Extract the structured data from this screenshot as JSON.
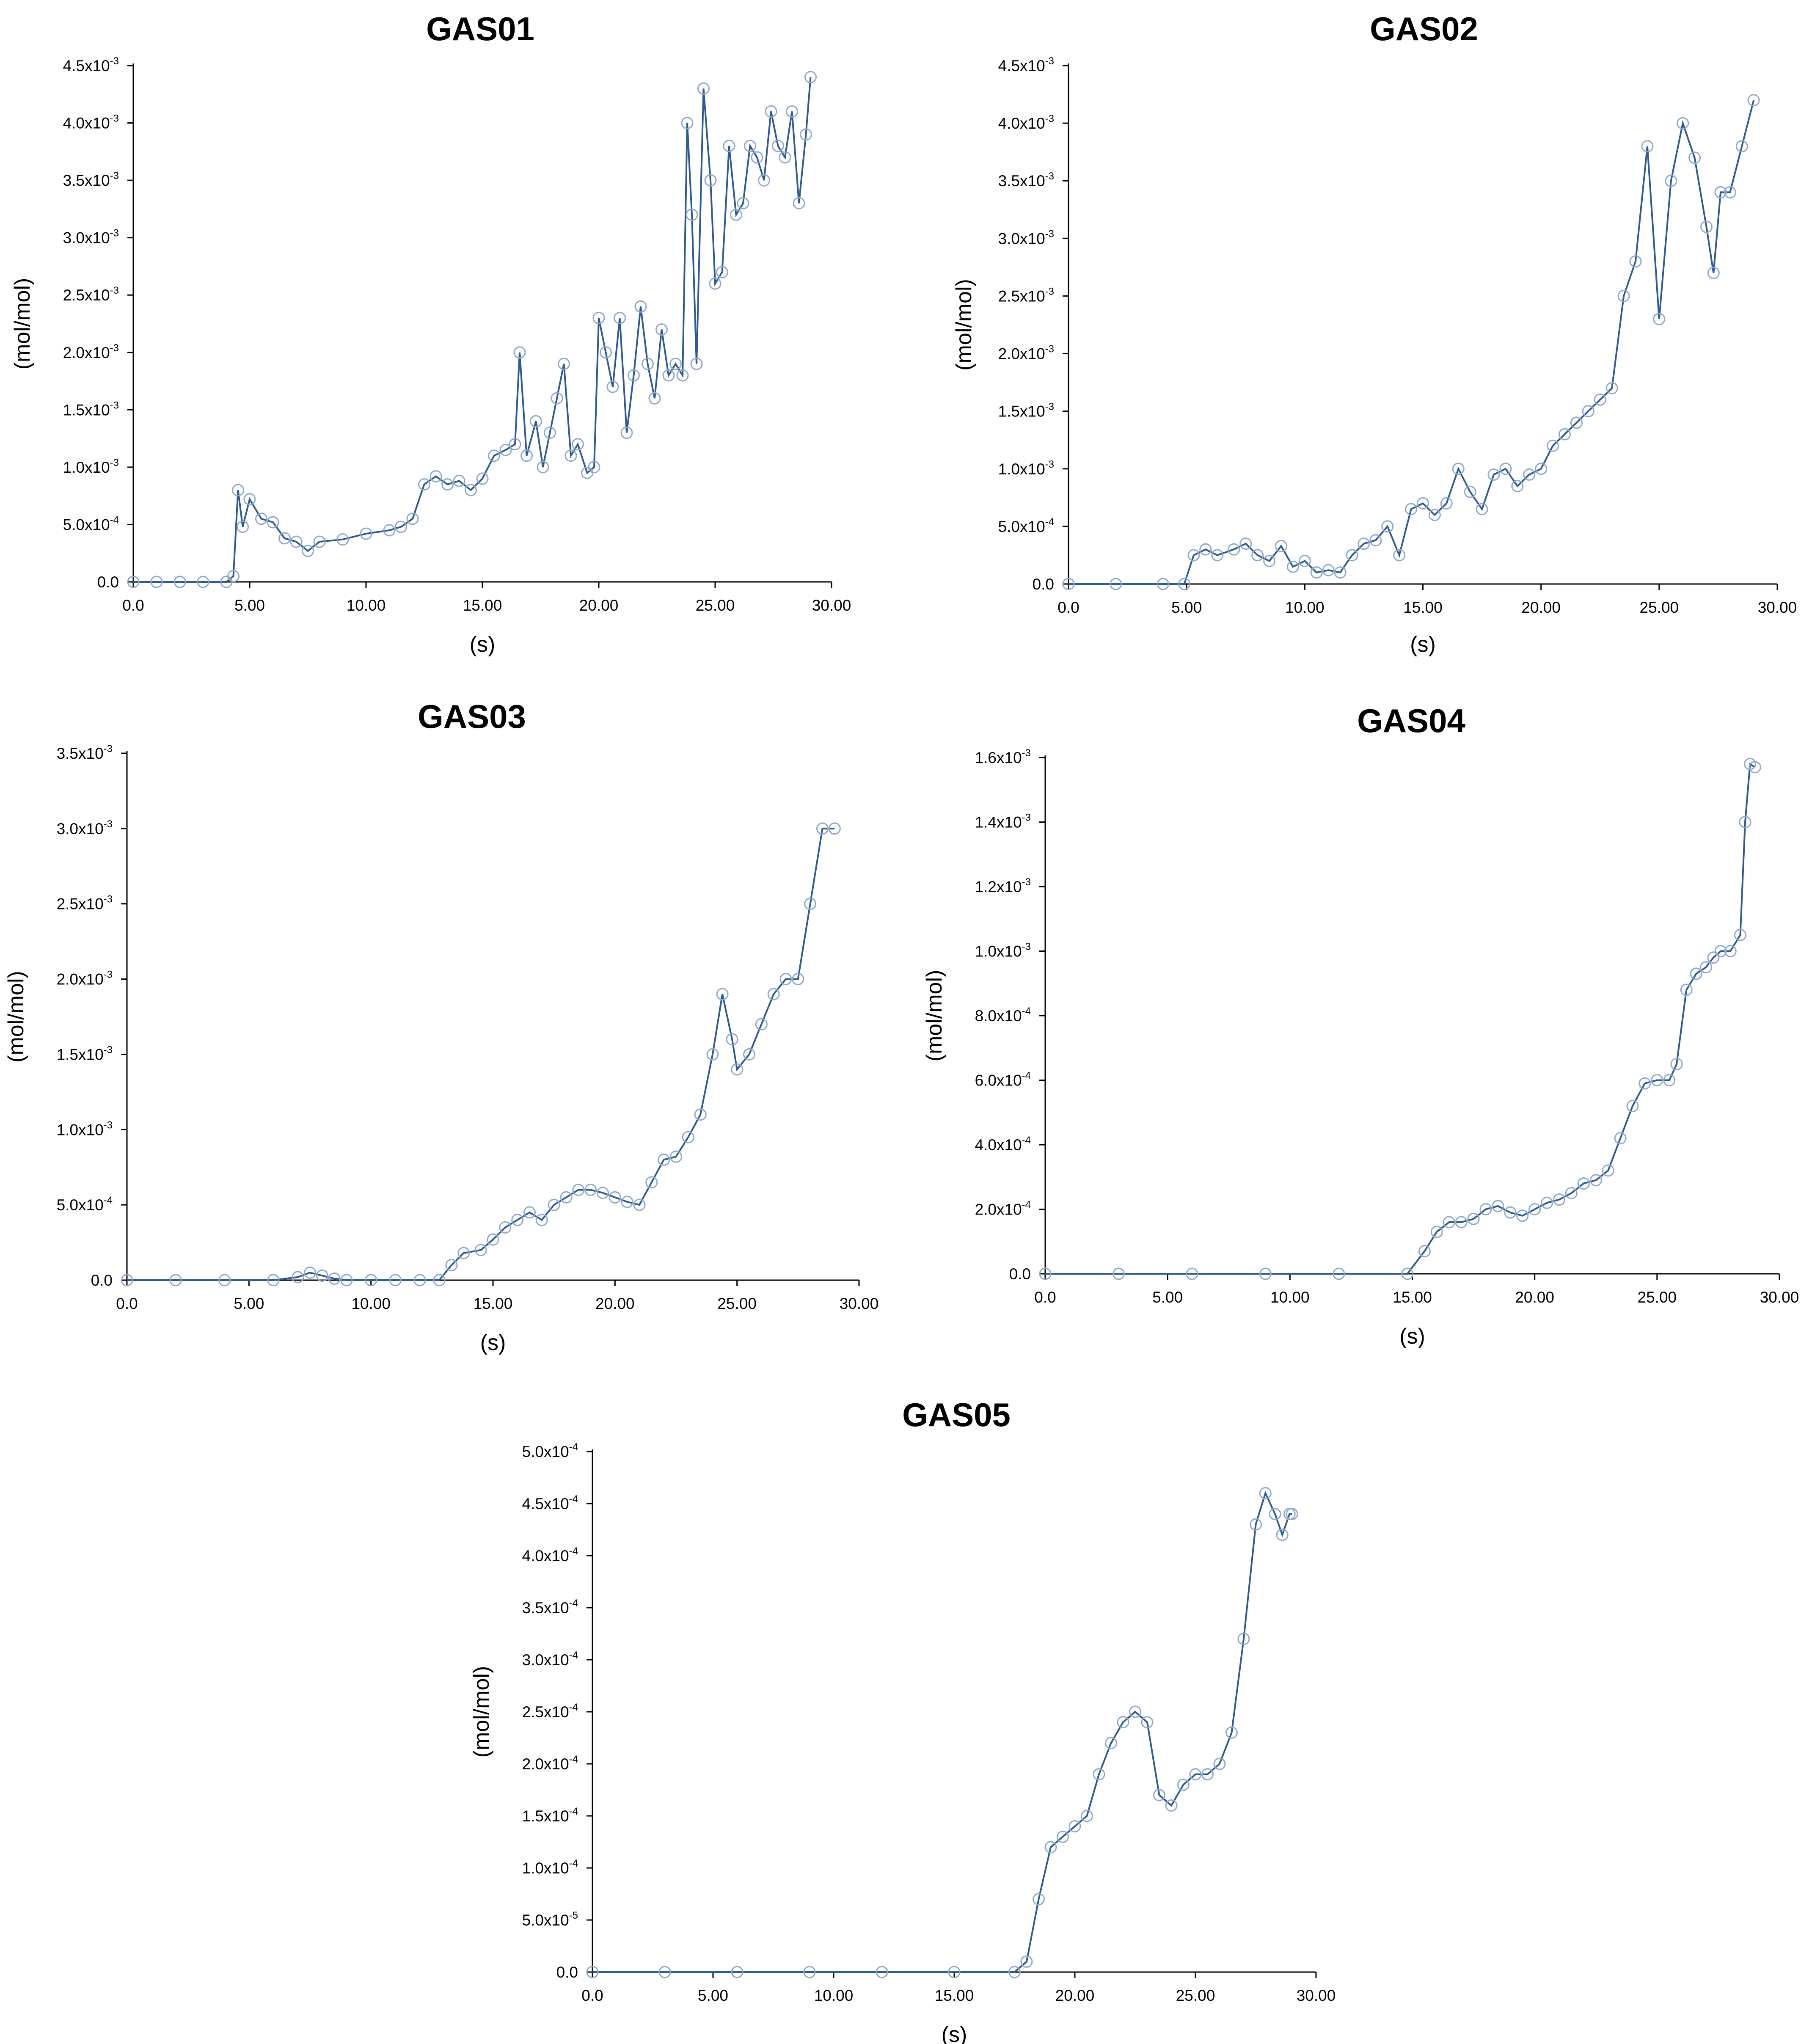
{
  "colors": {
    "line": "#2E5A8F",
    "marker": "#8FA8CC",
    "axis": "#000000"
  },
  "chart_data": [
    {
      "type": "line",
      "title": "GAS01",
      "xlabel": "(s)",
      "ylabel": "(mol/mol)",
      "xlim": [
        0,
        30
      ],
      "ylim": [
        0,
        0.0045
      ],
      "xticks": [
        {
          "v": 0,
          "label": "0.0"
        },
        {
          "v": 5,
          "label": "5.00"
        },
        {
          "v": 10,
          "label": "10.00"
        },
        {
          "v": 15,
          "label": "15.00"
        },
        {
          "v": 20,
          "label": "20.00"
        },
        {
          "v": 25,
          "label": "25.00"
        },
        {
          "v": 30,
          "label": "30.00"
        }
      ],
      "yticks": [
        {
          "v": 0,
          "m": "0.0",
          "e": ""
        },
        {
          "v": 0.0005,
          "m": "5.0x10",
          "e": "-4"
        },
        {
          "v": 0.001,
          "m": "1.0x10",
          "e": "-3"
        },
        {
          "v": 0.0015,
          "m": "1.5x10",
          "e": "-3"
        },
        {
          "v": 0.002,
          "m": "2.0x10",
          "e": "-3"
        },
        {
          "v": 0.0025,
          "m": "2.5x10",
          "e": "-3"
        },
        {
          "v": 0.003,
          "m": "3.0x10",
          "e": "-3"
        },
        {
          "v": 0.0035,
          "m": "3.5x10",
          "e": "-3"
        },
        {
          "v": 0.004,
          "m": "4.0x10",
          "e": "-3"
        },
        {
          "v": 0.0045,
          "m": "4.5x10",
          "e": "-3"
        }
      ],
      "x": [
        0,
        1,
        2,
        3,
        4,
        4.3,
        4.5,
        4.7,
        5.0,
        5.5,
        6.0,
        6.5,
        7.0,
        7.5,
        8.0,
        9.0,
        10.0,
        11.0,
        11.5,
        12.0,
        12.5,
        13.0,
        13.5,
        14.0,
        14.5,
        15.0,
        15.5,
        16.0,
        16.4,
        16.6,
        16.9,
        17.3,
        17.6,
        17.9,
        18.2,
        18.5,
        18.8,
        19.1,
        19.5,
        19.8,
        20.0,
        20.3,
        20.6,
        20.9,
        21.2,
        21.5,
        21.8,
        22.1,
        22.4,
        22.7,
        23.0,
        23.3,
        23.6,
        23.8,
        24.0,
        24.2,
        24.5,
        24.8,
        25.0,
        25.3,
        25.6,
        25.9,
        26.2,
        26.5,
        26.8,
        27.1,
        27.4,
        27.7,
        28.0,
        28.3,
        28.6,
        28.9,
        29.1
      ],
      "y": [
        0,
        0,
        0,
        0,
        0,
        5e-05,
        0.0008,
        0.00048,
        0.00072,
        0.00055,
        0.00052,
        0.00038,
        0.00035,
        0.00027,
        0.00035,
        0.00037,
        0.00042,
        0.00045,
        0.00048,
        0.00055,
        0.00085,
        0.00092,
        0.00085,
        0.00088,
        0.0008,
        0.0009,
        0.0011,
        0.00115,
        0.0012,
        0.002,
        0.0011,
        0.0014,
        0.001,
        0.0013,
        0.0016,
        0.0019,
        0.0011,
        0.0012,
        0.00095,
        0.001,
        0.0023,
        0.002,
        0.0017,
        0.0023,
        0.0013,
        0.0018,
        0.0024,
        0.0019,
        0.0016,
        0.0022,
        0.0018,
        0.0019,
        0.0018,
        0.004,
        0.0032,
        0.0019,
        0.0043,
        0.0035,
        0.0026,
        0.0027,
        0.0038,
        0.0032,
        0.0033,
        0.0038,
        0.0037,
        0.0035,
        0.0041,
        0.0038,
        0.0037,
        0.0041,
        0.0033,
        0.0039,
        0.0044
      ]
    },
    {
      "type": "line",
      "title": "GAS02",
      "xlabel": "(s)",
      "ylabel": "(mol/mol)",
      "xlim": [
        0,
        30
      ],
      "ylim": [
        0,
        0.0045
      ],
      "xticks": [
        {
          "v": 0,
          "label": "0.0"
        },
        {
          "v": 5,
          "label": "5.00"
        },
        {
          "v": 10,
          "label": "10.00"
        },
        {
          "v": 15,
          "label": "15.00"
        },
        {
          "v": 20,
          "label": "20.00"
        },
        {
          "v": 25,
          "label": "25.00"
        },
        {
          "v": 30,
          "label": "30.00"
        }
      ],
      "yticks": [
        {
          "v": 0,
          "m": "0.0",
          "e": ""
        },
        {
          "v": 0.0005,
          "m": "5.0x10",
          "e": "-4"
        },
        {
          "v": 0.001,
          "m": "1.0x10",
          "e": "-3"
        },
        {
          "v": 0.0015,
          "m": "1.5x10",
          "e": "-3"
        },
        {
          "v": 0.002,
          "m": "2.0x10",
          "e": "-3"
        },
        {
          "v": 0.0025,
          "m": "2.5x10",
          "e": "-3"
        },
        {
          "v": 0.003,
          "m": "3.0x10",
          "e": "-3"
        },
        {
          "v": 0.0035,
          "m": "3.5x10",
          "e": "-3"
        },
        {
          "v": 0.004,
          "m": "4.0x10",
          "e": "-3"
        },
        {
          "v": 0.0045,
          "m": "4.5x10",
          "e": "-3"
        }
      ],
      "x": [
        0,
        2,
        4,
        4.9,
        5.3,
        5.8,
        6.3,
        7.0,
        7.5,
        8.0,
        8.5,
        9.0,
        9.5,
        10.0,
        10.5,
        11.0,
        11.5,
        12.0,
        12.5,
        13.0,
        13.5,
        14.0,
        14.5,
        15.0,
        15.5,
        16.0,
        16.5,
        17.0,
        17.5,
        18.0,
        18.5,
        19.0,
        19.5,
        20.0,
        20.5,
        21.0,
        21.5,
        22.0,
        22.5,
        23.0,
        23.5,
        24.0,
        24.5,
        25.0,
        25.5,
        26.0,
        26.5,
        27.0,
        27.3,
        27.6,
        28.0,
        28.5,
        29.0
      ],
      "y": [
        0,
        0,
        0,
        0,
        0.00025,
        0.0003,
        0.00025,
        0.0003,
        0.00035,
        0.00025,
        0.0002,
        0.00033,
        0.00015,
        0.0002,
        0.0001,
        0.00012,
        0.0001,
        0.00025,
        0.00035,
        0.00038,
        0.0005,
        0.00025,
        0.00065,
        0.0007,
        0.0006,
        0.0007,
        0.001,
        0.0008,
        0.00065,
        0.00095,
        0.001,
        0.00085,
        0.00095,
        0.001,
        0.0012,
        0.0013,
        0.0014,
        0.0015,
        0.0016,
        0.0017,
        0.0025,
        0.0028,
        0.0038,
        0.0023,
        0.0035,
        0.004,
        0.0037,
        0.0031,
        0.0027,
        0.0034,
        0.0034,
        0.0038,
        0.0042
      ]
    },
    {
      "type": "line",
      "title": "GAS03",
      "xlabel": "(s)",
      "ylabel": "(mol/mol)",
      "xlim": [
        0,
        30
      ],
      "ylim": [
        0,
        0.0035
      ],
      "xticks": [
        {
          "v": 0,
          "label": "0.0"
        },
        {
          "v": 5,
          "label": "5.00"
        },
        {
          "v": 10,
          "label": "10.00"
        },
        {
          "v": 15,
          "label": "15.00"
        },
        {
          "v": 20,
          "label": "20.00"
        },
        {
          "v": 25,
          "label": "25.00"
        },
        {
          "v": 30,
          "label": "30.00"
        }
      ],
      "yticks": [
        {
          "v": 0,
          "m": "0.0",
          "e": ""
        },
        {
          "v": 0.0005,
          "m": "5.0x10",
          "e": "-4"
        },
        {
          "v": 0.001,
          "m": "1.0x10",
          "e": "-3"
        },
        {
          "v": 0.0015,
          "m": "1.5x10",
          "e": "-3"
        },
        {
          "v": 0.002,
          "m": "2.0x10",
          "e": "-3"
        },
        {
          "v": 0.0025,
          "m": "2.5x10",
          "e": "-3"
        },
        {
          "v": 0.003,
          "m": "3.0x10",
          "e": "-3"
        },
        {
          "v": 0.0035,
          "m": "3.5x10",
          "e": "-3"
        }
      ],
      "x": [
        0,
        2,
        4,
        6,
        7.0,
        7.5,
        8.0,
        8.5,
        9,
        10,
        11,
        12,
        12.8,
        13.3,
        13.8,
        14.5,
        15.0,
        15.5,
        16.0,
        16.5,
        17.0,
        17.5,
        18.0,
        18.5,
        19.0,
        19.5,
        20.0,
        20.5,
        21.0,
        21.5,
        22.0,
        22.5,
        23.0,
        23.5,
        24.0,
        24.4,
        24.8,
        25.0,
        25.5,
        26.0,
        26.5,
        27.0,
        27.5,
        28.0,
        28.5,
        29.0
      ],
      "y": [
        0,
        0,
        0,
        0,
        2e-05,
        5e-05,
        3e-05,
        1e-05,
        0,
        0,
        0,
        0,
        0,
        0.0001,
        0.00018,
        0.0002,
        0.00027,
        0.00035,
        0.0004,
        0.00045,
        0.0004,
        0.0005,
        0.00055,
        0.0006,
        0.0006,
        0.00058,
        0.00055,
        0.00052,
        0.0005,
        0.00065,
        0.0008,
        0.00082,
        0.00095,
        0.0011,
        0.0015,
        0.0019,
        0.0016,
        0.0014,
        0.0015,
        0.0017,
        0.0019,
        0.002,
        0.002,
        0.0025,
        0.003,
        0.003
      ]
    },
    {
      "type": "line",
      "title": "GAS04",
      "xlabel": "(s)",
      "ylabel": "(mol/mol)",
      "xlim": [
        0,
        30
      ],
      "ylim": [
        0,
        0.0016
      ],
      "xticks": [
        {
          "v": 0,
          "label": "0.0"
        },
        {
          "v": 5,
          "label": "5.00"
        },
        {
          "v": 10,
          "label": "10.00"
        },
        {
          "v": 15,
          "label": "15.00"
        },
        {
          "v": 20,
          "label": "20.00"
        },
        {
          "v": 25,
          "label": "25.00"
        },
        {
          "v": 30,
          "label": "30.00"
        }
      ],
      "yticks": [
        {
          "v": 0,
          "m": "0.0",
          "e": ""
        },
        {
          "v": 0.0002,
          "m": "2.0x10",
          "e": "-4"
        },
        {
          "v": 0.0004,
          "m": "4.0x10",
          "e": "-4"
        },
        {
          "v": 0.0006,
          "m": "6.0x10",
          "e": "-4"
        },
        {
          "v": 0.0008,
          "m": "8.0x10",
          "e": "-4"
        },
        {
          "v": 0.001,
          "m": "1.0x10",
          "e": "-3"
        },
        {
          "v": 0.0012,
          "m": "1.2x10",
          "e": "-3"
        },
        {
          "v": 0.0014,
          "m": "1.4x10",
          "e": "-3"
        },
        {
          "v": 0.0016,
          "m": "1.6x10",
          "e": "-3"
        }
      ],
      "x": [
        0,
        3,
        6,
        9,
        12,
        14.8,
        15.5,
        16.0,
        16.5,
        17.0,
        17.5,
        18.0,
        18.5,
        19.0,
        19.5,
        20.0,
        20.5,
        21.0,
        21.5,
        22.0,
        22.5,
        23.0,
        23.5,
        24.0,
        24.5,
        25.0,
        25.5,
        25.8,
        26.2,
        26.6,
        27.0,
        27.3,
        27.6,
        28.0,
        28.4,
        28.6,
        28.8,
        29.0
      ],
      "y": [
        0,
        0,
        0,
        0,
        0,
        0,
        7e-05,
        0.00013,
        0.00016,
        0.00016,
        0.00017,
        0.0002,
        0.00021,
        0.00019,
        0.00018,
        0.0002,
        0.00022,
        0.00023,
        0.00025,
        0.00028,
        0.00029,
        0.00032,
        0.00042,
        0.00052,
        0.00059,
        0.0006,
        0.0006,
        0.00065,
        0.00088,
        0.00093,
        0.00095,
        0.00098,
        0.001,
        0.001,
        0.00105,
        0.0014,
        0.00158,
        0.00157
      ]
    },
    {
      "type": "line",
      "title": "GAS05",
      "xlabel": "(s)",
      "ylabel": "(mol/mol)",
      "xlim": [
        0,
        30
      ],
      "ylim": [
        0,
        0.0005
      ],
      "xticks": [
        {
          "v": 0,
          "label": "0.0"
        },
        {
          "v": 5,
          "label": "5.00"
        },
        {
          "v": 10,
          "label": "10.00"
        },
        {
          "v": 15,
          "label": "15.00"
        },
        {
          "v": 20,
          "label": "20.00"
        },
        {
          "v": 25,
          "label": "25.00"
        },
        {
          "v": 30,
          "label": "30.00"
        }
      ],
      "yticks": [
        {
          "v": 0,
          "m": "0.0",
          "e": ""
        },
        {
          "v": 5e-05,
          "m": "5.0x10",
          "e": "-5"
        },
        {
          "v": 0.0001,
          "m": "1.0x10",
          "e": "-4"
        },
        {
          "v": 0.00015,
          "m": "1.5x10",
          "e": "-4"
        },
        {
          "v": 0.0002,
          "m": "2.0x10",
          "e": "-4"
        },
        {
          "v": 0.00025,
          "m": "2.5x10",
          "e": "-4"
        },
        {
          "v": 0.0003,
          "m": "3.0x10",
          "e": "-4"
        },
        {
          "v": 0.00035,
          "m": "3.5x10",
          "e": "-4"
        },
        {
          "v": 0.0004,
          "m": "4.0x10",
          "e": "-4"
        },
        {
          "v": 0.00045,
          "m": "4.5x10",
          "e": "-4"
        },
        {
          "v": 0.0005,
          "m": "5.0x10",
          "e": "-4"
        }
      ],
      "x": [
        0,
        3,
        6,
        9,
        12,
        15,
        17.5,
        18.0,
        18.5,
        19.0,
        19.5,
        20.0,
        20.5,
        21.0,
        21.5,
        22.0,
        22.5,
        23.0,
        23.5,
        24.0,
        24.5,
        25.0,
        25.5,
        26.0,
        26.5,
        27.0,
        27.5,
        27.9,
        28.3,
        28.6,
        28.9,
        29.0
      ],
      "y": [
        0,
        0,
        0,
        0,
        0,
        0,
        0,
        1e-05,
        7e-05,
        0.00012,
        0.00013,
        0.00014,
        0.00015,
        0.00019,
        0.00022,
        0.00024,
        0.00025,
        0.00024,
        0.00017,
        0.00016,
        0.00018,
        0.00019,
        0.00019,
        0.0002,
        0.00023,
        0.00032,
        0.00043,
        0.00046,
        0.00044,
        0.00042,
        0.00044,
        0.00044
      ]
    }
  ]
}
